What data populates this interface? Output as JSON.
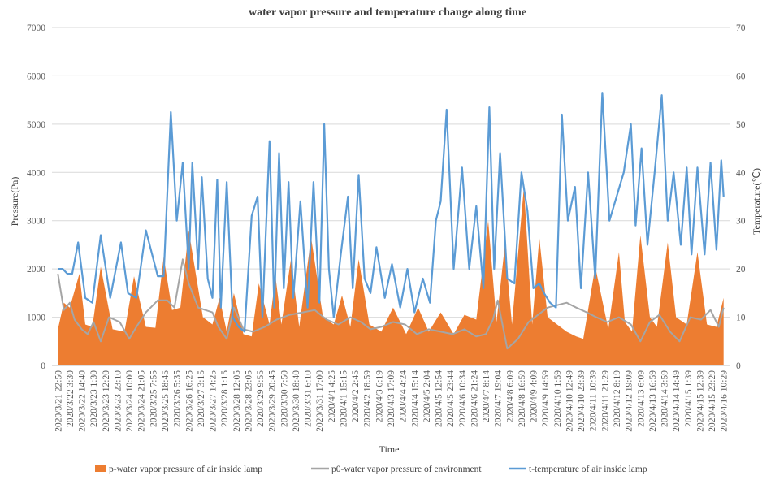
{
  "chart_data": {
    "type": "area",
    "title": "water vapor pressure and temperature change along time",
    "xlabel": "Time",
    "ylabel": "Pressure(Pa)",
    "y2label": "Temperature(℃)",
    "ylim": [
      0,
      7000
    ],
    "y2lim": [
      0,
      70
    ],
    "yticks": [
      "0",
      "1000",
      "2000",
      "3000",
      "4000",
      "5000",
      "6000",
      "7000"
    ],
    "y2ticks": [
      "0",
      "10",
      "20",
      "30",
      "40",
      "50",
      "60",
      "70"
    ],
    "grid": true,
    "legend_position": "bottom",
    "x_tick_labels": [
      "2020/3/21 22:50",
      "2020/3/22 3:30",
      "2020/3/22 14:40",
      "2020/3/23 1:30",
      "2020/3/23 12:20",
      "2020/3/23 23:10",
      "2020/3/24 10:00",
      "2020/3/24 21:05",
      "2020/3/25 7:55",
      "2020/3/25 18:45",
      "2020/3/26 5:35",
      "2020/3/26 16:25",
      "2020/3/27 3:15",
      "2020/3/27 14:25",
      "2020/3/28 1:15",
      "2020/3/28 12:05",
      "2020/3/28 23:05",
      "2020/3/29 9:55",
      "2020/3/29 20:45",
      "2020/3/30 7:50",
      "2020/3/30 18:40",
      "2020/3/31 6:10",
      "2020/3/31 17:00",
      "2020/4/1 4:25",
      "2020/4/1 15:15",
      "2020/4/2 2:45",
      "2020/4/2 18:59",
      "2020/4/3 6:19",
      "2020/4/3 17:09",
      "2020/4/4 4:24",
      "2020/4/4 15:14",
      "2020/4/5 2:04",
      "2020/4/5 12:54",
      "2020/4/5 23:44",
      "2020/4/6 10:34",
      "2020/4/6 21:24",
      "2020/4/7 8:14",
      "2020/4/7 19:04",
      "2020/4/8 6:09",
      "2020/4/8 16:59",
      "2020/4/9 4:09",
      "2020/4/9 14:59",
      "2020/4/10 1:59",
      "2020/4/10 12:49",
      "2020/4/10 23:39",
      "2020/4/11 10:39",
      "2020/4/11 21:29",
      "2020/4/12 8:19",
      "2020/4/12 19:09",
      "2020/4/13 6:09",
      "2020/4/13 16:59",
      "2020/4/14 3:59",
      "2020/4/14 14:49",
      "2020/4/15 1:39",
      "2020/4/15 12:39",
      "2020/4/15 23:29",
      "2020/4/16 10:29"
    ],
    "series": [
      {
        "name": "p-water vapor pressure of air inside lamp",
        "axis": "left",
        "kind": "area",
        "color": "#ED7D31",
        "x": [
          0,
          0.5,
          1.0,
          1.8,
          2.3,
          2.9,
          3.6,
          4.6,
          5.6,
          6.4,
          7.4,
          8.2,
          8.9,
          9.6,
          10.3,
          11.0,
          11.6,
          12.2,
          13.0,
          13.6,
          14.2,
          14.8,
          15.6,
          16.3,
          16.9,
          17.8,
          18.3,
          18.8,
          19.6,
          20.3,
          21.3,
          22.3,
          23.2,
          23.9,
          24.6,
          25.3,
          26.2,
          27.2,
          28.2,
          29.3,
          30.3,
          31.2,
          32.2,
          33.3,
          34.2,
          35.2,
          36.2,
          36.9,
          37.6,
          38.2,
          39.2,
          39.9,
          40.5,
          41.2,
          42.0,
          42.8,
          43.6,
          44.2,
          45.2,
          46.3,
          47.2,
          47.7,
          48.3,
          49.0,
          49.8,
          50.4,
          51.3,
          52.0,
          52.9,
          53.8,
          54.6,
          55.4,
          56.0
        ],
        "values": [
          750,
          1300,
          1200,
          1900,
          850,
          800,
          2050,
          750,
          700,
          1850,
          800,
          780,
          2250,
          1150,
          1200,
          2800,
          1900,
          1000,
          850,
          1400,
          700,
          1500,
          650,
          600,
          1700,
          850,
          1850,
          850,
          2200,
          800,
          2650,
          1000,
          850,
          1450,
          800,
          2200,
          850,
          700,
          1200,
          650,
          1200,
          700,
          1100,
          650,
          1050,
          950,
          3000,
          900,
          2500,
          850,
          3700,
          850,
          2650,
          1000,
          850,
          700,
          600,
          550,
          2050,
          750,
          2350,
          900,
          700,
          2700,
          1000,
          800,
          2550,
          1000,
          850,
          2350,
          850,
          800,
          1400
        ]
      },
      {
        "name": "p0-water vapor pressure of environment",
        "axis": "left",
        "kind": "line",
        "color": "#A5A5A5",
        "x": [
          0,
          0.5,
          1.0,
          1.4,
          2.0,
          2.5,
          3.0,
          3.6,
          4.3,
          5.2,
          6.0,
          6.6,
          7.4,
          8.4,
          9.2,
          9.8,
          10.5,
          11.0,
          11.8,
          12.4,
          13.0,
          13.5,
          14.2,
          14.8,
          15.6,
          16.4,
          17.4,
          18.4,
          19.5,
          20.6,
          21.6,
          22.6,
          23.6,
          24.6,
          25.5,
          26.3,
          27.2,
          28.2,
          29.2,
          30.2,
          31.2,
          32.2,
          33.2,
          34.2,
          35.2,
          36.0,
          36.6,
          37.0,
          37.8,
          38.7,
          39.6,
          40.4,
          41.2,
          42.0,
          42.8,
          43.6,
          44.5,
          45.3,
          46.2,
          47.2,
          48.2,
          49.0,
          49.8,
          50.6,
          51.5,
          52.3,
          53.2,
          54.1,
          54.9,
          55.6,
          56.0
        ],
        "values": [
          1900,
          1150,
          1300,
          950,
          750,
          650,
          900,
          500,
          1000,
          900,
          550,
          800,
          1100,
          1350,
          1350,
          1200,
          2200,
          1700,
          1200,
          1150,
          1100,
          800,
          550,
          1200,
          750,
          700,
          800,
          950,
          1050,
          1100,
          1150,
          950,
          850,
          1000,
          900,
          750,
          800,
          900,
          850,
          650,
          750,
          700,
          650,
          750,
          600,
          650,
          950,
          1350,
          350,
          550,
          900,
          1050,
          1200,
          1250,
          1300,
          1200,
          1100,
          1000,
          900,
          1000,
          850,
          500,
          900,
          1050,
          700,
          500,
          1000,
          950,
          1150,
          800,
          1200
        ]
      },
      {
        "name": "t-temperature of air inside lamp",
        "axis": "right",
        "kind": "line",
        "color": "#5B9BD5",
        "x": [
          0,
          0.4,
          0.8,
          1.2,
          1.7,
          2.3,
          2.9,
          3.6,
          4.4,
          5.3,
          5.9,
          6.6,
          7.4,
          8.4,
          8.9,
          9.5,
          10.0,
          10.5,
          11.0,
          11.3,
          11.8,
          12.1,
          12.6,
          13.0,
          13.4,
          13.7,
          14.2,
          14.7,
          15.2,
          15.7,
          16.3,
          16.8,
          17.2,
          17.8,
          18.2,
          18.6,
          19.0,
          19.4,
          19.8,
          20.4,
          21.0,
          21.5,
          22.0,
          22.4,
          22.8,
          23.2,
          23.8,
          24.4,
          24.8,
          25.3,
          25.8,
          26.3,
          26.8,
          27.5,
          28.1,
          28.8,
          29.4,
          30.0,
          30.7,
          31.3,
          31.8,
          32.2,
          32.7,
          33.3,
          34.0,
          34.6,
          35.2,
          35.8,
          36.3,
          36.7,
          37.2,
          37.8,
          38.4,
          39.0,
          39.5,
          40.0,
          40.5,
          40.9,
          41.4,
          41.9,
          42.4,
          42.9,
          43.5,
          44.0,
          44.6,
          45.2,
          45.8,
          46.4,
          47.0,
          47.6,
          48.2,
          48.6,
          49.1,
          49.6,
          50.2,
          50.8,
          51.3,
          51.8,
          52.4,
          52.9,
          53.3,
          53.8,
          54.4,
          54.9,
          55.4,
          55.8,
          56.0
        ],
        "values": [
          20,
          20,
          19,
          19,
          25.5,
          14,
          13,
          27,
          14,
          25.5,
          15,
          14,
          28,
          18.5,
          18.5,
          52.5,
          30,
          42,
          20,
          42,
          20,
          39,
          18,
          14,
          38.5,
          12,
          38,
          10,
          8,
          7,
          31,
          35,
          10,
          46.5,
          12,
          44,
          16,
          38,
          14,
          34,
          12,
          38,
          13,
          50,
          20,
          10,
          23,
          35,
          16,
          39.5,
          18,
          15,
          24.5,
          14,
          21,
          12,
          20,
          11,
          18,
          13,
          30,
          34,
          53,
          20,
          41,
          20,
          33,
          16,
          53.5,
          20,
          44,
          18,
          17,
          40,
          32,
          16,
          17,
          15,
          13,
          12,
          52,
          30,
          37,
          16,
          40,
          18,
          56.5,
          30,
          35,
          40,
          50,
          29,
          45,
          25,
          40,
          56,
          30,
          40,
          25,
          41,
          23,
          41,
          23,
          42,
          24,
          42.5,
          35
        ]
      }
    ]
  }
}
